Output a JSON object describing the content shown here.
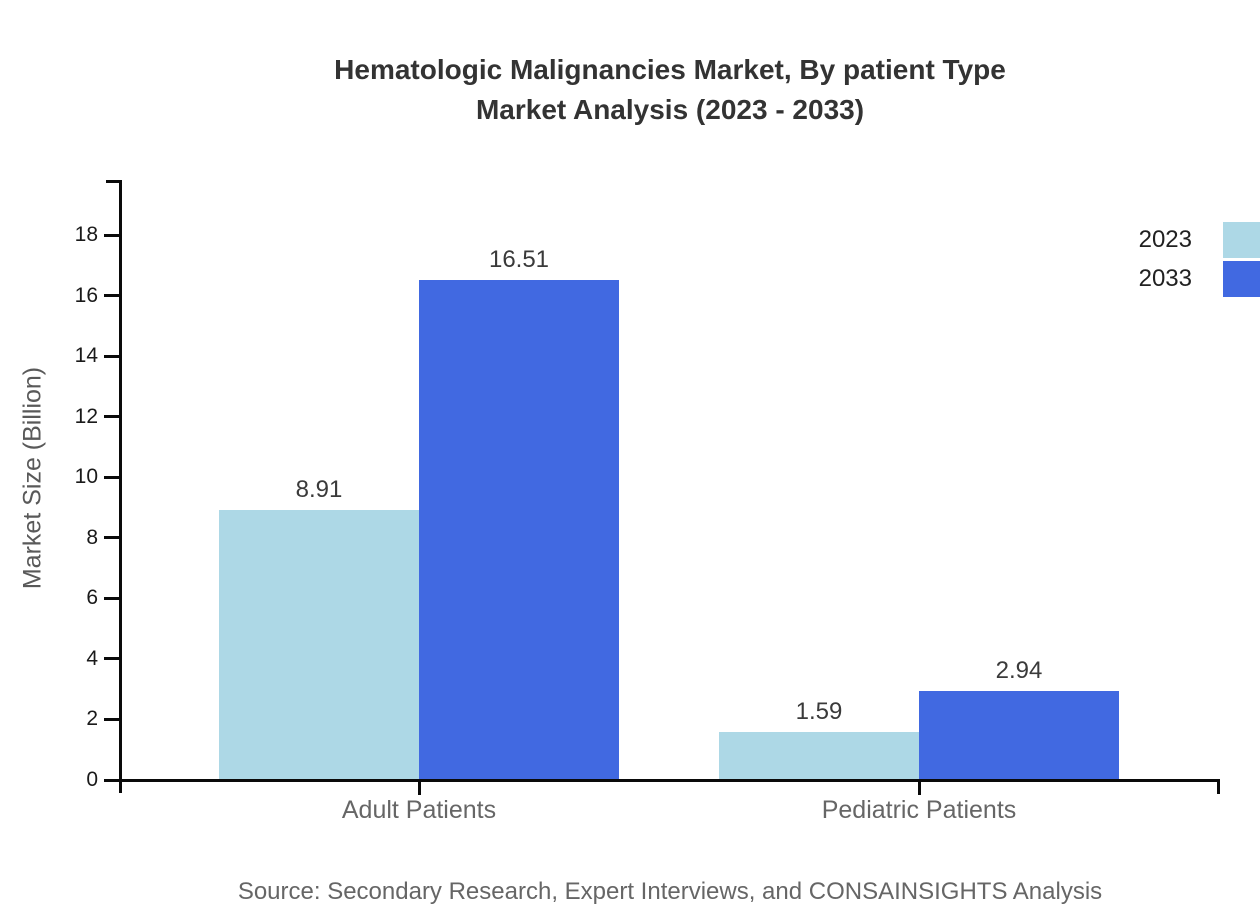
{
  "title": {
    "line1": "Hematologic Malignancies Market, By patient Type",
    "line2": "Market Analysis (2023 - 2033)"
  },
  "source": "Source: Secondary Research, Expert Interviews, and CONSAINSIGHTS Analysis",
  "chart_data": {
    "type": "bar",
    "title": "Hematologic Malignancies Market, By patient Type Market Analysis (2023 - 2033)",
    "categories": [
      "Adult Patients",
      "Pediatric Patients"
    ],
    "series": [
      {
        "name": "2023",
        "color": "#ADD8E6",
        "values": [
          8.91,
          1.59
        ]
      },
      {
        "name": "2033",
        "color": "#4169E1",
        "values": [
          16.51,
          2.94
        ]
      }
    ],
    "xlabel": "",
    "ylabel": "Market Size (Billion)",
    "ylim": [
      0,
      19.82
    ],
    "y_ticks": [
      0,
      2,
      4,
      6,
      8,
      10,
      12,
      14,
      16,
      18
    ],
    "grid": false,
    "legend_position": "top-right",
    "value_labels": true,
    "axis_color": "#0a0a0a"
  }
}
